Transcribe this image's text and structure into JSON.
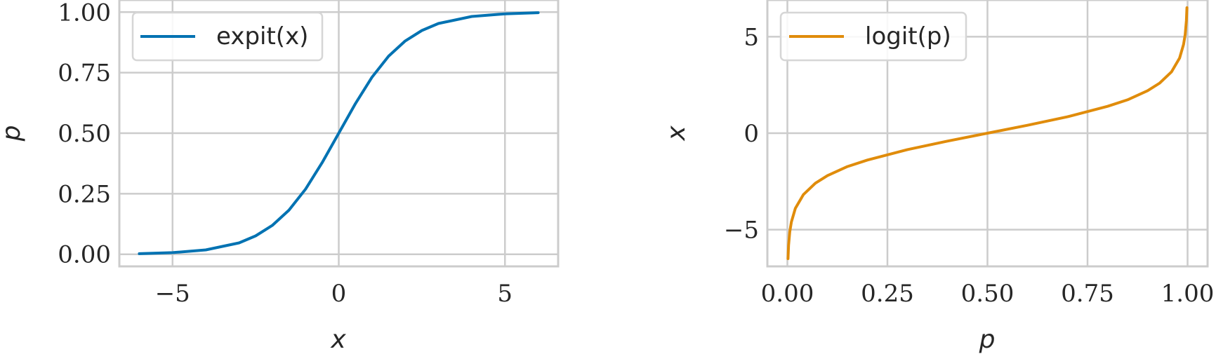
{
  "chart_data": [
    {
      "type": "line",
      "xlabel": "x",
      "ylabel": "p",
      "xlim": [
        -6.6,
        6.6
      ],
      "ylim": [
        -0.05,
        1.05
      ],
      "xticks": [
        -5,
        0,
        5
      ],
      "xtick_labels": [
        "−5",
        "0",
        "5"
      ],
      "yticks": [
        0,
        0.25,
        0.5,
        0.75,
        1.0
      ],
      "ytick_labels": [
        "0.00",
        "0.25",
        "0.50",
        "0.75",
        "1.00"
      ],
      "grid": true,
      "legend_position": "top-left",
      "series": [
        {
          "name": "expit(x)",
          "color": "#0072b2",
          "x": [
            -6,
            -5,
            -4,
            -3,
            -2.5,
            -2,
            -1.5,
            -1,
            -0.5,
            0,
            0.5,
            1,
            1.5,
            2,
            2.5,
            3,
            4,
            5,
            6
          ],
          "y": [
            0.0025,
            0.0067,
            0.018,
            0.047,
            0.076,
            0.119,
            0.182,
            0.269,
            0.378,
            0.5,
            0.622,
            0.731,
            0.818,
            0.881,
            0.924,
            0.953,
            0.982,
            0.993,
            0.9975
          ]
        }
      ]
    },
    {
      "type": "line",
      "xlabel": "p",
      "ylabel": "x",
      "xlim": [
        -0.05,
        1.05
      ],
      "ylim": [
        -6.9,
        6.9
      ],
      "xticks": [
        0,
        0.25,
        0.5,
        0.75,
        1.0
      ],
      "xtick_labels": [
        "0.00",
        "0.25",
        "0.50",
        "0.75",
        "1.00"
      ],
      "yticks": [
        -5,
        0,
        5
      ],
      "ytick_labels": [
        "−5",
        "0",
        "5"
      ],
      "grid": true,
      "legend_position": "top-left",
      "series": [
        {
          "name": "logit(p)",
          "color": "#e08c0b",
          "x": [
            0.0015,
            0.003,
            0.006,
            0.01,
            0.02,
            0.04,
            0.07,
            0.1,
            0.15,
            0.2,
            0.3,
            0.4,
            0.5,
            0.6,
            0.7,
            0.8,
            0.85,
            0.9,
            0.93,
            0.96,
            0.98,
            0.99,
            0.994,
            0.997,
            0.9985
          ],
          "y": [
            -6.5,
            -5.81,
            -5.11,
            -4.6,
            -3.89,
            -3.18,
            -2.59,
            -2.2,
            -1.73,
            -1.39,
            -0.85,
            -0.41,
            0,
            0.41,
            0.85,
            1.39,
            1.73,
            2.2,
            2.59,
            3.18,
            3.89,
            4.6,
            5.11,
            5.81,
            6.5
          ]
        }
      ]
    }
  ]
}
